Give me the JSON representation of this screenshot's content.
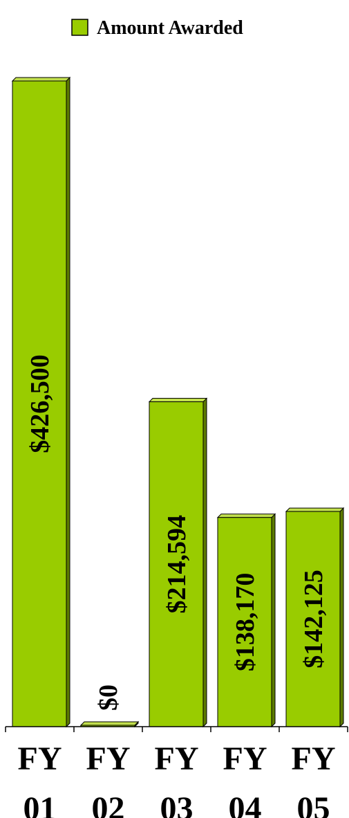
{
  "chart_data": {
    "type": "bar",
    "title": "",
    "xlabel": "",
    "ylabel": "",
    "categories": [
      [
        "FY",
        "01"
      ],
      [
        "FY",
        "02"
      ],
      [
        "FY",
        "03"
      ],
      [
        "FY",
        "04"
      ],
      [
        "FY",
        "05"
      ]
    ],
    "series": [
      {
        "name": "Amount Awarded",
        "values": [
          426500,
          0,
          214594,
          138170,
          142125
        ],
        "labels": [
          "$426,500",
          "$0",
          "$214,594",
          "$138,170",
          "$142,125"
        ],
        "color": "#99CC00"
      }
    ],
    "legend_position": "top-center",
    "ylim": [
      0,
      426500
    ],
    "grid": false
  }
}
